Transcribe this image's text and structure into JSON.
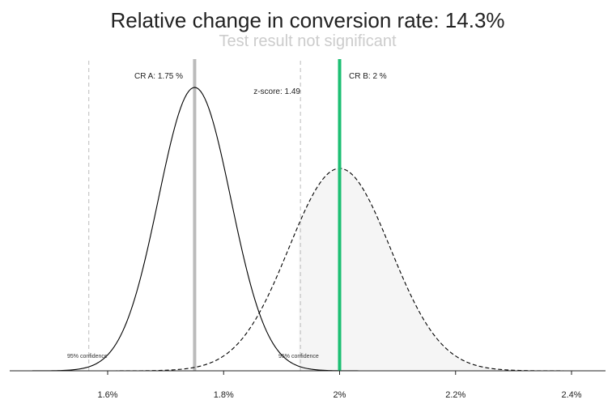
{
  "chart_data": {
    "type": "line",
    "title": "Relative change in conversion rate: 14.3%",
    "subtitle": "Test result not significant",
    "xlabel": "",
    "ylabel": "",
    "xlim": [
      1.47,
      2.48
    ],
    "x_ticks": [
      {
        "value": 1.6,
        "label": "1.6%"
      },
      {
        "value": 1.8,
        "label": "1.8%"
      },
      {
        "value": 2.0,
        "label": "2%"
      },
      {
        "value": 2.2,
        "label": "2.2%"
      },
      {
        "value": 2.4,
        "label": "2.4%"
      }
    ],
    "series": [
      {
        "key": "a",
        "mean": 1.75,
        "sd": 0.0625,
        "line_style": "solid",
        "color": "#000000"
      },
      {
        "key": "b",
        "mean": 2.0,
        "sd": 0.0875,
        "line_style": "dashed",
        "color": "#000000"
      }
    ],
    "shaded_region": {
      "from": 1.93,
      "under": "b",
      "color": "#f5f5f5"
    },
    "markers": {
      "cr_a": {
        "value": 1.75,
        "label": "CR A: 1.75 %",
        "color": "#bbbbbb"
      },
      "cr_b": {
        "value": 2.0,
        "label": "CR B: 2 %",
        "color": "#1dbf73"
      }
    },
    "confidence_lines": [
      {
        "value": 1.5675,
        "label": "95% confidence"
      },
      {
        "value": 1.9325,
        "label": "95% confidence"
      }
    ],
    "z_score_label": "z-score:  1.49",
    "grid": false,
    "legend": "none"
  }
}
